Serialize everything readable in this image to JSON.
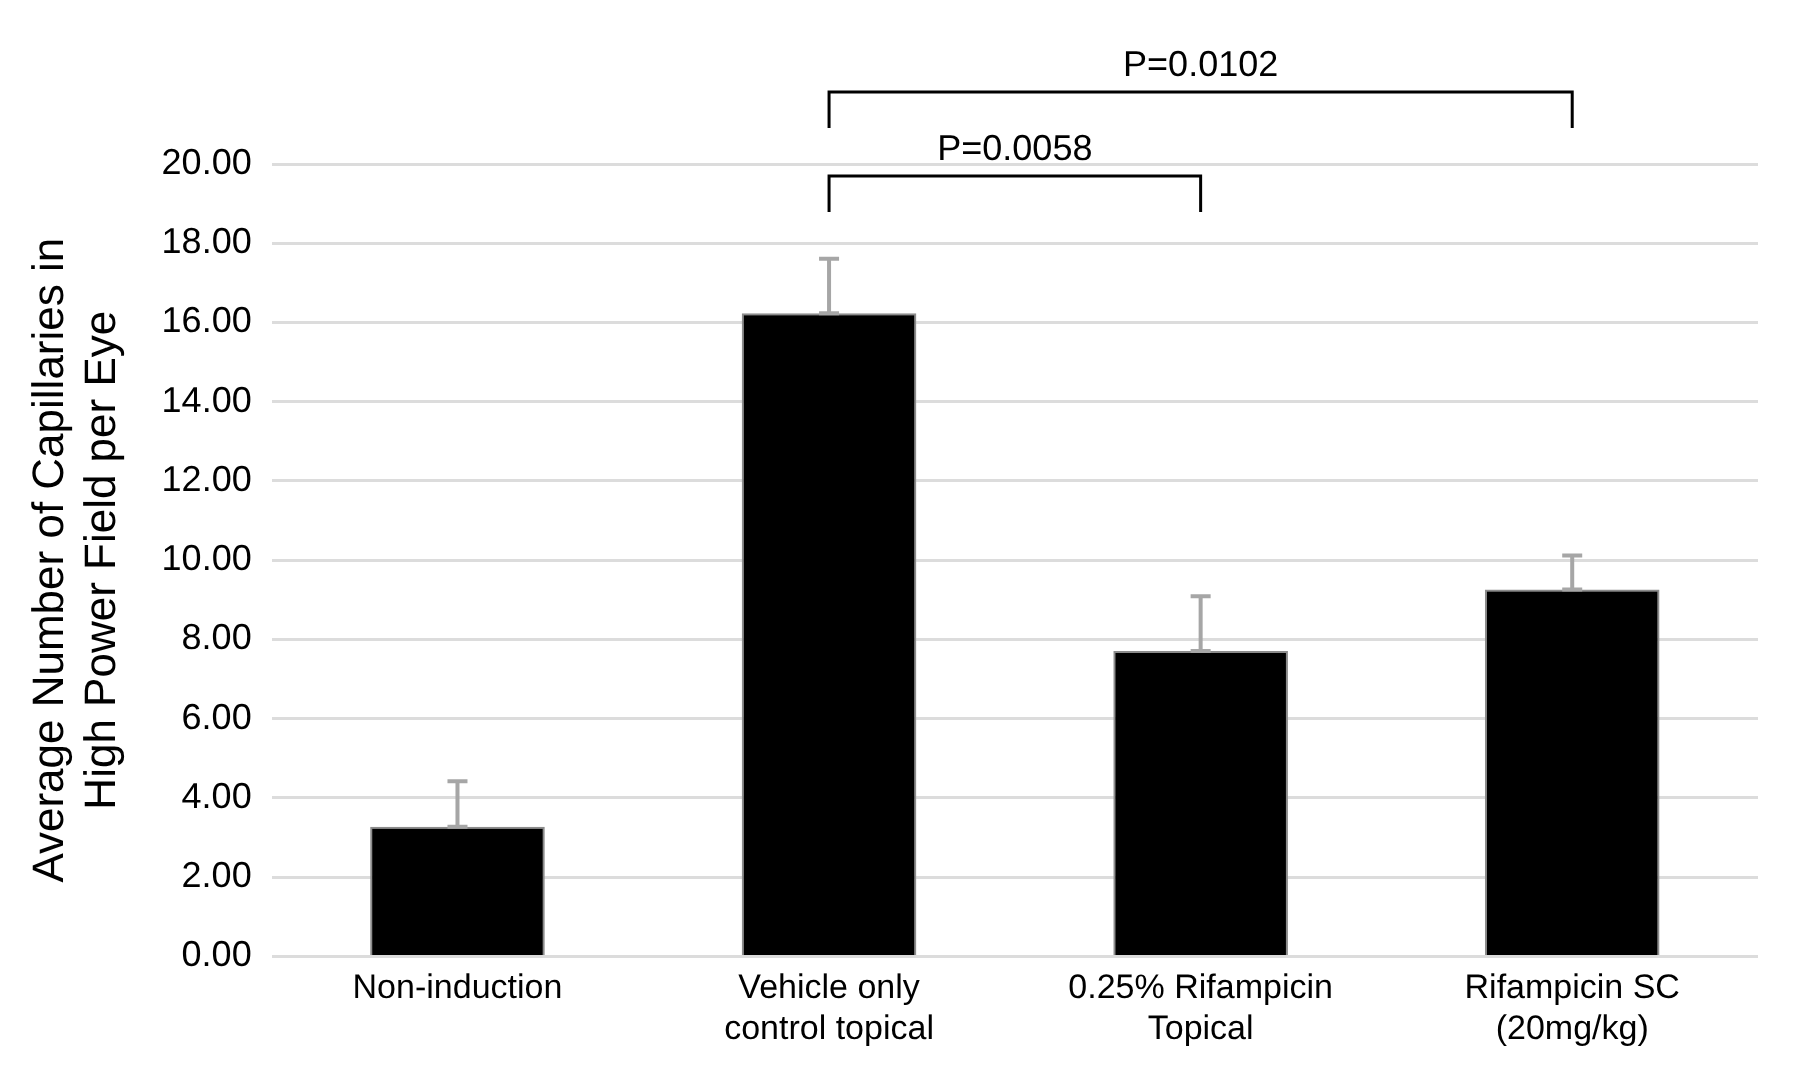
{
  "chart_data": {
    "type": "bar",
    "ylabel": "Average Number of Capillaries in High Power Field per Eye",
    "categories": [
      "Non-induction",
      "Vehicle only control topical",
      "0.25% Rifampicin Topical",
      "Rifampicin SC (20mg/kg)"
    ],
    "values": [
      3.27,
      16.23,
      7.71,
      9.26
    ],
    "errors": [
      [
        3.27,
        4.42
      ],
      [
        16.23,
        17.61
      ],
      [
        7.71,
        9.09
      ],
      [
        9.26,
        10.12
      ]
    ],
    "color": "#000000",
    "ylim": [
      0,
      20
    ],
    "yticks": [
      {
        "value": 0,
        "label": "0.00"
      },
      {
        "value": 2,
        "label": "2.00"
      },
      {
        "value": 4,
        "label": "4.00"
      },
      {
        "value": 6,
        "label": "6.00"
      },
      {
        "value": 8,
        "label": "8.00"
      },
      {
        "value": 10,
        "label": "10.00"
      },
      {
        "value": 12,
        "label": "12.00"
      },
      {
        "value": 14,
        "label": "14.00"
      },
      {
        "value": 16,
        "label": "16.00"
      },
      {
        "value": 18,
        "label": "18.00"
      },
      {
        "value": 20,
        "label": "20.00"
      }
    ],
    "grid": "y",
    "annotations": [
      "P=0.0058",
      "P=0.0102"
    ]
  }
}
